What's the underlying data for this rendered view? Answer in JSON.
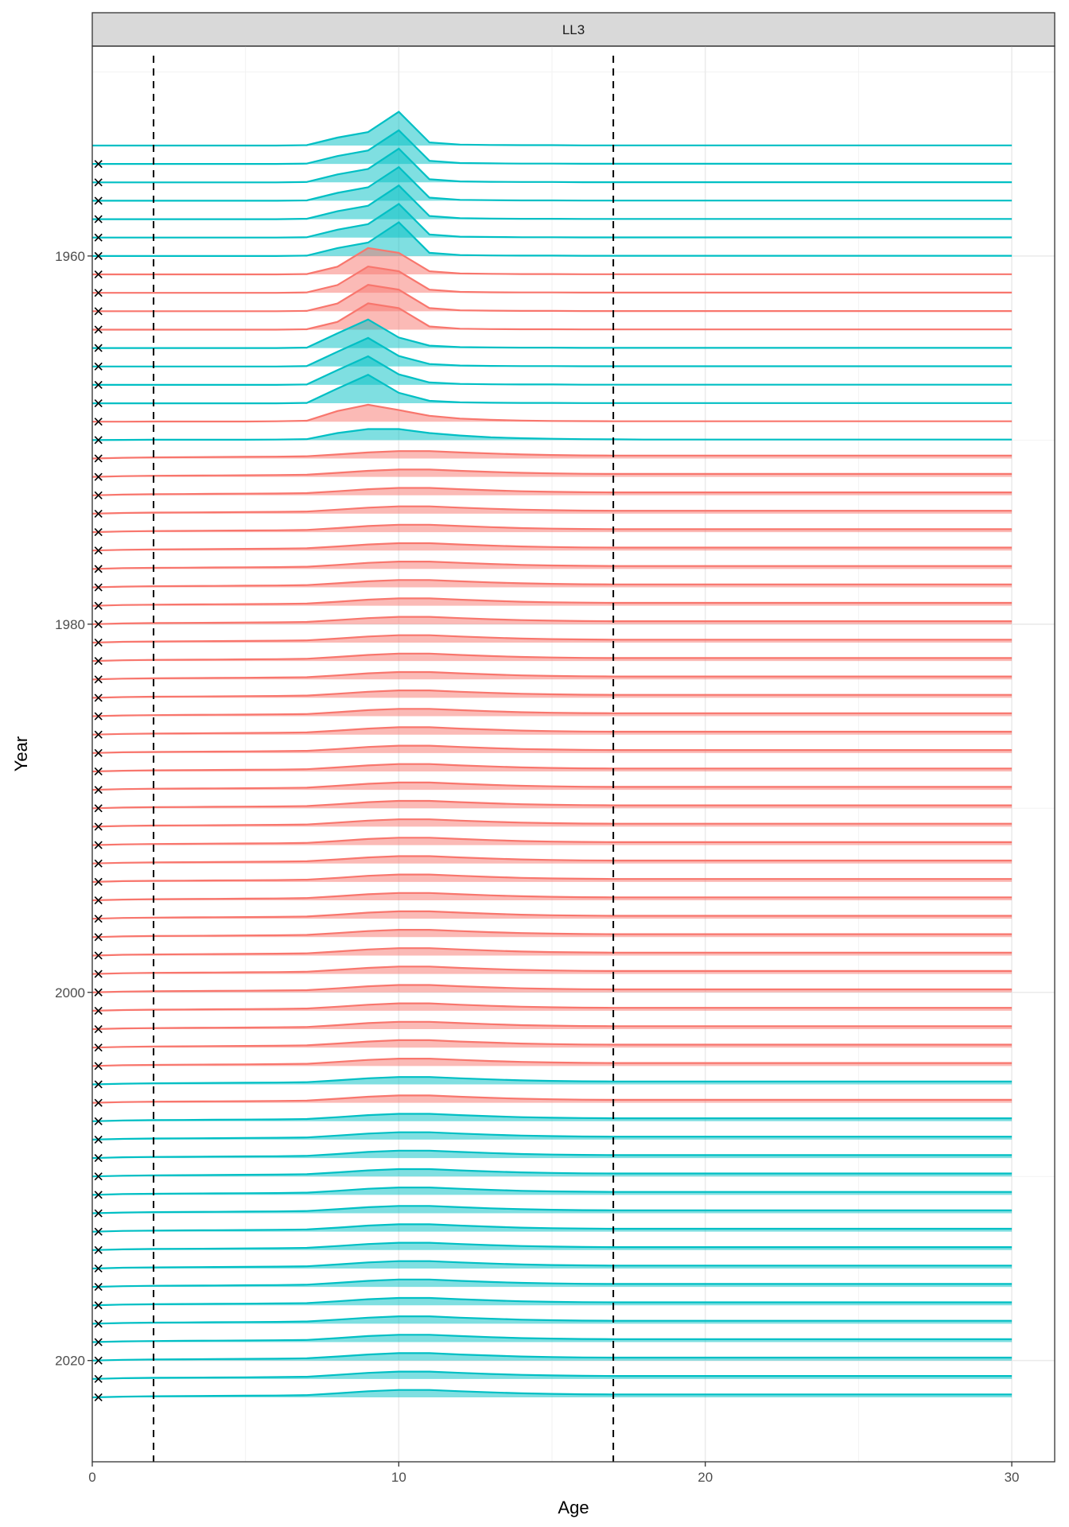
{
  "chart_data": {
    "type": "ridgeline",
    "strip_label": "LL3",
    "xlabel": "Age",
    "ylabel": "Year",
    "xlim": [
      0,
      31.4
    ],
    "ylim": [
      1948.6,
      2025.5
    ],
    "x_ticks": [
      0,
      10,
      20,
      30
    ],
    "y_ticks": [
      1960,
      1980,
      2000,
      2020
    ],
    "grid": true,
    "vlines_dashed": [
      2,
      17
    ],
    "colors": {
      "cyan": "#00BFC4",
      "red": "#F8766D"
    },
    "cross_marker_age": 0.2,
    "ages": [
      0,
      1,
      2,
      3,
      4,
      5,
      6,
      7,
      8,
      9,
      10,
      11,
      12,
      13,
      14,
      15,
      16,
      17,
      18,
      19,
      20,
      21,
      22,
      23,
      24,
      25,
      26,
      27,
      28,
      29,
      30
    ],
    "profiles": {
      "A": [
        0,
        0,
        0,
        0,
        0,
        0,
        0,
        0.02,
        0.43,
        0.73,
        1.83,
        0.17,
        0.05,
        0.03,
        0.02,
        0.02,
        0.01,
        0.01,
        0.01,
        0.01,
        0.01,
        0.01,
        0.01,
        0.01,
        0.01,
        0.01,
        0.01,
        0.01,
        0.01,
        0.01,
        0.01
      ],
      "B": [
        0,
        0,
        0,
        0,
        0,
        0,
        0,
        0.02,
        0.42,
        1.43,
        1.17,
        0.17,
        0.05,
        0.03,
        0.02,
        0.02,
        0.01,
        0.01,
        0.01,
        0.01,
        0.01,
        0.01,
        0.01,
        0.01,
        0.01,
        0.01,
        0.01,
        0.01,
        0.01,
        0.01,
        0.01
      ],
      "C": [
        0,
        0,
        0,
        0,
        0,
        0,
        0,
        0.02,
        0.8,
        1.55,
        0.57,
        0.13,
        0.05,
        0.03,
        0.02,
        0.02,
        0.01,
        0.01,
        0.01,
        0.01,
        0.01,
        0.01,
        0.01,
        0.01,
        0.01,
        0.01,
        0.01,
        0.01,
        0.01,
        0.01,
        0.01
      ],
      "D": [
        0,
        0,
        0.01,
        0.01,
        0.01,
        0.01,
        0.02,
        0.05,
        0.58,
        0.92,
        0.63,
        0.32,
        0.17,
        0.1,
        0.06,
        0.04,
        0.03,
        0.02,
        0.02,
        0.02,
        0.02,
        0.02,
        0.02,
        0.02,
        0.02,
        0.02,
        0.02,
        0.02,
        0.02,
        0.02,
        0.02
      ],
      "E": [
        0,
        0.01,
        0.02,
        0.02,
        0.02,
        0.02,
        0.03,
        0.05,
        0.38,
        0.6,
        0.6,
        0.38,
        0.25,
        0.15,
        0.1,
        0.07,
        0.05,
        0.04,
        0.03,
        0.03,
        0.03,
        0.03,
        0.03,
        0.03,
        0.03,
        0.03,
        0.03,
        0.03,
        0.03,
        0.03,
        0.03
      ],
      "F": [
        0,
        0.04,
        0.06,
        0.07,
        0.08,
        0.09,
        0.1,
        0.12,
        0.22,
        0.33,
        0.4,
        0.4,
        0.33,
        0.27,
        0.22,
        0.19,
        0.17,
        0.16,
        0.16,
        0.16,
        0.16,
        0.16,
        0.16,
        0.16,
        0.16,
        0.16,
        0.16,
        0.16,
        0.16,
        0.16,
        0.16
      ]
    },
    "rows": [
      [
        1954,
        "cyan",
        "A",
        false
      ],
      [
        1955,
        "cyan",
        "A",
        true
      ],
      [
        1956,
        "cyan",
        "A",
        true
      ],
      [
        1957,
        "cyan",
        "A",
        true
      ],
      [
        1958,
        "cyan",
        "A",
        true
      ],
      [
        1959,
        "cyan",
        "A",
        true
      ],
      [
        1960,
        "cyan",
        "A",
        true
      ],
      [
        1961,
        "red",
        "B",
        true
      ],
      [
        1962,
        "red",
        "B",
        true
      ],
      [
        1963,
        "red",
        "B",
        true
      ],
      [
        1964,
        "red",
        "B",
        true
      ],
      [
        1965,
        "cyan",
        "C",
        true
      ],
      [
        1966,
        "cyan",
        "C",
        true
      ],
      [
        1967,
        "cyan",
        "C",
        true
      ],
      [
        1968,
        "cyan",
        "C",
        true
      ],
      [
        1969,
        "red",
        "D",
        true
      ],
      [
        1970,
        "cyan",
        "E",
        true
      ],
      [
        1971,
        "red",
        "F",
        true
      ],
      [
        1972,
        "red",
        "F",
        true
      ],
      [
        1973,
        "red",
        "F",
        true
      ],
      [
        1974,
        "red",
        "F",
        true
      ],
      [
        1975,
        "red",
        "F",
        true
      ],
      [
        1976,
        "red",
        "F",
        true
      ],
      [
        1977,
        "red",
        "F",
        true
      ],
      [
        1978,
        "red",
        "F",
        true
      ],
      [
        1979,
        "red",
        "F",
        true
      ],
      [
        1980,
        "red",
        "F",
        true
      ],
      [
        1981,
        "red",
        "F",
        true
      ],
      [
        1982,
        "red",
        "F",
        true
      ],
      [
        1983,
        "red",
        "F",
        true
      ],
      [
        1984,
        "red",
        "F",
        true
      ],
      [
        1985,
        "red",
        "F",
        true
      ],
      [
        1986,
        "red",
        "F",
        true
      ],
      [
        1987,
        "red",
        "F",
        true
      ],
      [
        1988,
        "red",
        "F",
        true
      ],
      [
        1989,
        "red",
        "F",
        true
      ],
      [
        1990,
        "red",
        "F",
        true
      ],
      [
        1991,
        "red",
        "F",
        true
      ],
      [
        1992,
        "red",
        "F",
        true
      ],
      [
        1993,
        "red",
        "F",
        true
      ],
      [
        1994,
        "red",
        "F",
        true
      ],
      [
        1995,
        "red",
        "F",
        true
      ],
      [
        1996,
        "red",
        "F",
        true
      ],
      [
        1997,
        "red",
        "F",
        true
      ],
      [
        1998,
        "red",
        "F",
        true
      ],
      [
        1999,
        "red",
        "F",
        true
      ],
      [
        2000,
        "red",
        "F",
        true
      ],
      [
        2001,
        "red",
        "F",
        true
      ],
      [
        2002,
        "red",
        "F",
        true
      ],
      [
        2003,
        "red",
        "F",
        true
      ],
      [
        2004,
        "red",
        "F",
        true
      ],
      [
        2005,
        "cyan",
        "F",
        true
      ],
      [
        2006,
        "red",
        "F",
        true
      ],
      [
        2007,
        "cyan",
        "F",
        true
      ],
      [
        2008,
        "cyan",
        "F",
        true
      ],
      [
        2009,
        "cyan",
        "F",
        true
      ],
      [
        2010,
        "cyan",
        "F",
        true
      ],
      [
        2011,
        "cyan",
        "F",
        true
      ],
      [
        2012,
        "cyan",
        "F",
        true
      ],
      [
        2013,
        "cyan",
        "F",
        true
      ],
      [
        2014,
        "cyan",
        "F",
        true
      ],
      [
        2015,
        "cyan",
        "F",
        true
      ],
      [
        2016,
        "cyan",
        "F",
        true
      ],
      [
        2017,
        "cyan",
        "F",
        true
      ],
      [
        2018,
        "cyan",
        "F",
        true
      ],
      [
        2019,
        "cyan",
        "F",
        true
      ],
      [
        2020,
        "cyan",
        "F",
        true
      ],
      [
        2021,
        "cyan",
        "F",
        true
      ],
      [
        2022,
        "cyan",
        "F",
        true
      ]
    ]
  }
}
